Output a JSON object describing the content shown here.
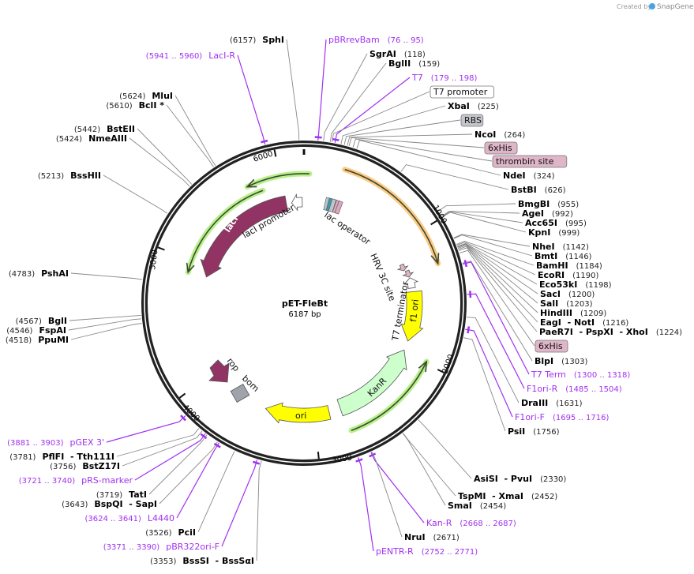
{
  "credit": {
    "prefix": "Created by",
    "brand": "SnapGene"
  },
  "plasmid": {
    "name": "pET-FleBt",
    "size": "6187 bp"
  },
  "ticks": [
    "1000",
    "2000",
    "3000",
    "4000",
    "5000",
    "6000"
  ],
  "features": {
    "lacI": "lacI",
    "lacI_promoter": "lacI promoter",
    "lac_operator": "lac operator",
    "hrv": "HRV 3C site",
    "t7_terminator": "T7 terminator",
    "f1_ori": "f1 ori",
    "kanr": "KanR",
    "ori": "ori",
    "rop": "rop",
    "bom": "bom"
  },
  "labels": [
    {
      "kind": "primer",
      "name": "pBRrevBam",
      "pos": "(76 .. 95)"
    },
    {
      "kind": "site",
      "name": "SgrAI",
      "pos": "(118)"
    },
    {
      "kind": "site",
      "name": "BglII",
      "pos": "(159)"
    },
    {
      "kind": "primer",
      "name": "T7",
      "pos": "(179 .. 198)"
    },
    {
      "kind": "box",
      "name": "T7 promoter",
      "style": "white"
    },
    {
      "kind": "site",
      "name": "XbaI",
      "pos": "(225)"
    },
    {
      "kind": "box",
      "name": "RBS",
      "style": "gray"
    },
    {
      "kind": "site",
      "name": "NcoI",
      "pos": "(264)"
    },
    {
      "kind": "box",
      "name": "6xHis",
      "style": "pink"
    },
    {
      "kind": "box",
      "name": "thrombin site",
      "style": "pink"
    },
    {
      "kind": "site",
      "name": "NdeI",
      "pos": "(324)"
    },
    {
      "kind": "site",
      "name": "BstBI",
      "pos": "(626)"
    },
    {
      "kind": "site",
      "name": "BmgBI",
      "pos": "(955)"
    },
    {
      "kind": "site",
      "name": "AgeI",
      "pos": "(992)"
    },
    {
      "kind": "site",
      "name": "Acc65I",
      "pos": "(995)"
    },
    {
      "kind": "site",
      "name": "KpnI",
      "pos": "(999)"
    },
    {
      "kind": "site",
      "name": "NheI",
      "pos": "(1142)"
    },
    {
      "kind": "site",
      "name": "BmtI",
      "pos": "(1146)"
    },
    {
      "kind": "site",
      "name": "BamHI",
      "pos": "(1184)"
    },
    {
      "kind": "site",
      "name": "EcoRI",
      "pos": "(1190)"
    },
    {
      "kind": "site",
      "name": "Eco53kI",
      "pos": "(1198)"
    },
    {
      "kind": "site",
      "name": "SacI",
      "pos": "(1200)"
    },
    {
      "kind": "site",
      "name": "SalI",
      "pos": "(1203)"
    },
    {
      "kind": "site",
      "name": "HindIII",
      "pos": "(1209)"
    },
    {
      "kind": "site",
      "name": "EagI  - NotI",
      "pos": "(1216)"
    },
    {
      "kind": "site",
      "name": "PaeR7I  - PspXI  - XhoI",
      "pos": "(1224)"
    },
    {
      "kind": "box",
      "name": "6xHis",
      "style": "pink"
    },
    {
      "kind": "site",
      "name": "BlpI",
      "pos": "(1303)"
    },
    {
      "kind": "primer",
      "name": "T7 Term",
      "pos": "(1300 .. 1318)"
    },
    {
      "kind": "primer",
      "name": "F1ori-R",
      "pos": "(1485 .. 1504)"
    },
    {
      "kind": "site",
      "name": "DraIII",
      "pos": "(1631)"
    },
    {
      "kind": "primer",
      "name": "F1ori-F",
      "pos": "(1695 .. 1716)"
    },
    {
      "kind": "site",
      "name": "PsiI",
      "pos": "(1756)"
    },
    {
      "kind": "site",
      "name": "AsiSI  - PvuI",
      "pos": "(2330)"
    },
    {
      "kind": "site",
      "name": "TspMI  - XmaI",
      "pos": "(2452)"
    },
    {
      "kind": "site",
      "name": "SmaI",
      "pos": "(2454)"
    },
    {
      "kind": "primer",
      "name": "Kan-R",
      "pos": "(2668 .. 2687)"
    },
    {
      "kind": "site",
      "name": "NruI",
      "pos": "(2671)"
    },
    {
      "kind": "primer",
      "name": "pENTR-R",
      "pos": "(2752 .. 2771)"
    },
    {
      "kind": "site",
      "name": "SphI",
      "pos": "(6157)"
    },
    {
      "kind": "primer",
      "name": "LacI-R",
      "pos": "(5941 .. 5960)"
    },
    {
      "kind": "site",
      "name": "MluI",
      "pos": "(5624)"
    },
    {
      "kind": "site",
      "name": "BclI *",
      "pos": "(5610)"
    },
    {
      "kind": "site",
      "name": "BstEII",
      "pos": "(5442)"
    },
    {
      "kind": "site",
      "name": "NmeAIII",
      "pos": "(5424)"
    },
    {
      "kind": "site",
      "name": "BssHII",
      "pos": "(5213)"
    },
    {
      "kind": "site",
      "name": "PshAI",
      "pos": "(4783)"
    },
    {
      "kind": "site",
      "name": "BglI",
      "pos": "(4567)"
    },
    {
      "kind": "site",
      "name": "FspAI",
      "pos": "(4546)"
    },
    {
      "kind": "site",
      "name": "PpuMI",
      "pos": "(4518)"
    },
    {
      "kind": "primer",
      "name": "pGEX 3'",
      "pos": "(3881 .. 3903)"
    },
    {
      "kind": "site",
      "name": "PflFI  - Tth111I",
      "pos": "(3781)"
    },
    {
      "kind": "site",
      "name": "BstZ17I",
      "pos": "(3756)"
    },
    {
      "kind": "primer",
      "name": "pRS-marker",
      "pos": "(3721 .. 3740)"
    },
    {
      "kind": "site",
      "name": "TatI",
      "pos": "(3719)"
    },
    {
      "kind": "site",
      "name": "BspQI  - SapI",
      "pos": "(3643)"
    },
    {
      "kind": "primer",
      "name": "L4440",
      "pos": "(3624 .. 3641)"
    },
    {
      "kind": "site",
      "name": "PciI",
      "pos": "(3526)"
    },
    {
      "kind": "primer",
      "name": "pBR322ori-F",
      "pos": "(3371 .. 3390)"
    },
    {
      "kind": "site",
      "name": "BssSI  - BssSαI",
      "pos": "(3353)"
    }
  ],
  "colors": {
    "primer": "#a030f0",
    "lacI": "#923463",
    "yellow": "#ffff00",
    "kanr": "#ccffcc",
    "green_outline": "#b8f08c",
    "orange_outline": "#fdca85",
    "bom": "#a0a4aa",
    "box_pink": "#dfb6c8",
    "box_gray": "#c3c7cc"
  }
}
